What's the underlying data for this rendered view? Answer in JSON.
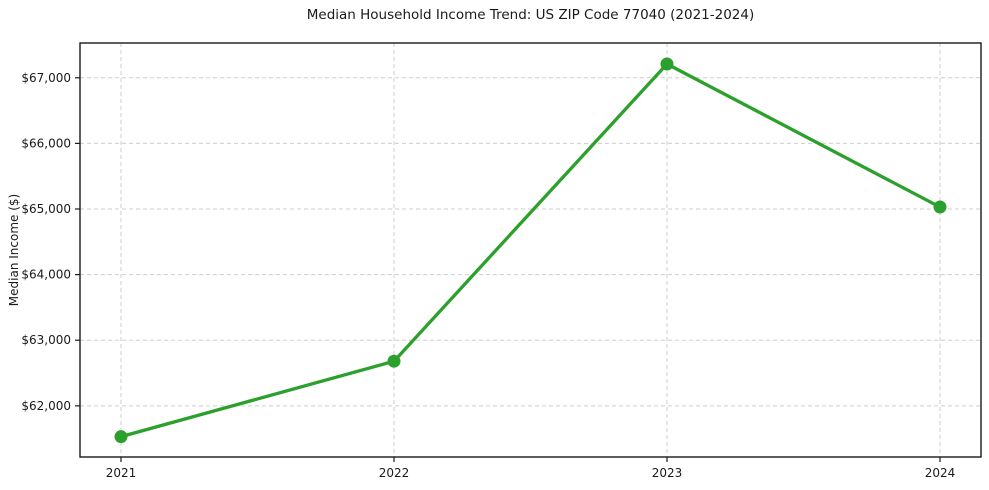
{
  "chart_data": {
    "type": "line",
    "title": "Median Household Income Trend: US ZIP Code 77040 (2021-2024)",
    "xlabel": "",
    "ylabel": "Median Income ($)",
    "x": [
      2021,
      2022,
      2023,
      2024
    ],
    "x_tick_labels": [
      "2021",
      "2022",
      "2023",
      "2024"
    ],
    "series": [
      {
        "name": "Median Household Income",
        "values": [
          61530,
          62680,
          67210,
          65030
        ]
      }
    ],
    "ylim": [
      61220,
      67530
    ],
    "yticks": [
      62000,
      63000,
      64000,
      65000,
      66000,
      67000
    ],
    "ytick_labels": [
      "$62,000",
      "$63,000",
      "$64,000",
      "$65,000",
      "$66,000",
      "$67,000"
    ],
    "grid": true,
    "grid_style": "dashed",
    "legend_position": "none",
    "marker": "circle",
    "colors": {
      "line": "#2ca02c",
      "marker": "#2ca02c",
      "grid": "#cdcdcd",
      "spine": "#1a1a1a",
      "tick": "#1a1a1a",
      "text": "#1a1a1a",
      "background": "#ffffff"
    }
  }
}
